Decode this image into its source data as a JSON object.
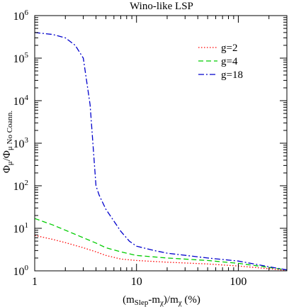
{
  "chart_data": {
    "type": "line",
    "title": "Wino-like LSP",
    "xlabel_parts": {
      "open": "(m",
      "sub1": "Slep",
      "mid": "-m",
      "sub2": "χ",
      "mid2": ")/m",
      "sub3": "χ",
      "close": " (%)"
    },
    "ylabel_parts": {
      "num": "Φ",
      "num_sub": "μ",
      "slash": "/Φ",
      "den_sub": "μ No Coann."
    },
    "x_scale": "log",
    "y_scale": "log",
    "xlim": [
      1,
      300
    ],
    "ylim": [
      1,
      1000000
    ],
    "x_ticks": [
      {
        "value": 1,
        "label": "1"
      },
      {
        "value": 10,
        "label": "10"
      },
      {
        "value": 100,
        "label": "100"
      }
    ],
    "y_ticks": [
      {
        "value": 1,
        "base": "10",
        "exp": "0"
      },
      {
        "value": 10,
        "base": "10",
        "exp": "1"
      },
      {
        "value": 100,
        "base": "10",
        "exp": "2"
      },
      {
        "value": 1000,
        "base": "10",
        "exp": "3"
      },
      {
        "value": 10000,
        "base": "10",
        "exp": "4"
      },
      {
        "value": 100000,
        "base": "10",
        "exp": "5"
      },
      {
        "value": 1000000,
        "base": "10",
        "exp": "6"
      }
    ],
    "legend_position": "top-right",
    "grid": false,
    "series": [
      {
        "name": "g=2",
        "color": "#ff0000",
        "dash": "1.5,2.5",
        "x": [
          1,
          1.5,
          2,
          3,
          4,
          5,
          7,
          10,
          20,
          50,
          100,
          200,
          300
        ],
        "y": [
          6.8,
          5.5,
          4.6,
          3.5,
          2.8,
          2.3,
          1.9,
          1.75,
          1.6,
          1.45,
          1.3,
          1.12,
          1.02
        ]
      },
      {
        "name": "g=4",
        "color": "#00cc00",
        "dash": "7,4",
        "x": [
          1,
          1.5,
          2,
          3,
          4,
          5,
          7,
          10,
          20,
          50,
          100,
          200,
          300
        ],
        "y": [
          17,
          12,
          9,
          6,
          4.5,
          3.5,
          2.8,
          2.3,
          2.0,
          1.75,
          1.5,
          1.2,
          1.05
        ]
      },
      {
        "name": "g=18",
        "color": "#0000cc",
        "dash": "8,3,2,3",
        "x": [
          1,
          1.5,
          2,
          2.5,
          3,
          3.5,
          4,
          4.3,
          5,
          7,
          8.5,
          10,
          15,
          20,
          50,
          100,
          200,
          300
        ],
        "y": [
          400000,
          360000,
          300000,
          200000,
          100000,
          8000,
          100,
          60,
          28,
          8.5,
          5,
          3.8,
          3.0,
          2.6,
          2.0,
          1.7,
          1.25,
          1.05
        ]
      }
    ]
  }
}
